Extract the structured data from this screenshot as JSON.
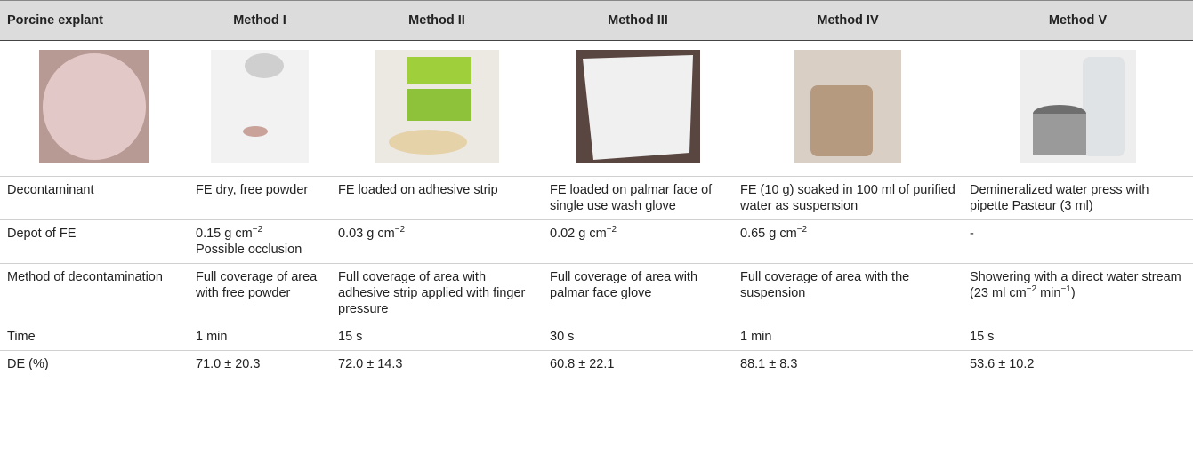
{
  "table": {
    "header": [
      "Porcine explant",
      "Method I",
      "Method II",
      "Method III",
      "Method IV",
      "Method V"
    ],
    "rows": [
      {
        "label": "Decontaminant",
        "cells": [
          [
            [
              "FE dry, free powder"
            ]
          ],
          [
            [
              "FE loaded on adhesive strip"
            ]
          ],
          [
            [
              "FE loaded on palmar face of single use wash glove"
            ]
          ],
          [
            [
              "FE (10 g) soaked in 100 ml of purified water as suspension"
            ]
          ],
          [
            [
              "Demineralized water press with pipette Pasteur (3 ml)"
            ]
          ]
        ]
      },
      {
        "label": "Depot of FE",
        "cells": [
          [
            [
              "0.15 g cm",
              {
                "sup": "−2"
              }
            ],
            [
              "Possible occlusion"
            ]
          ],
          [
            [
              "0.03 g cm",
              {
                "sup": "−2"
              }
            ]
          ],
          [
            [
              "0.02 g cm",
              {
                "sup": "−2"
              }
            ]
          ],
          [
            [
              "0.65 g cm",
              {
                "sup": "−2"
              }
            ]
          ],
          [
            [
              "-"
            ]
          ]
        ]
      },
      {
        "label": "Method of decontamination",
        "cells": [
          [
            [
              "Full coverage of area with free powder"
            ]
          ],
          [
            [
              "Full coverage of area with adhesive strip applied with finger pressure"
            ]
          ],
          [
            [
              "Full coverage of area with palmar face glove"
            ]
          ],
          [
            [
              "Full coverage of area with the suspension"
            ]
          ],
          [
            [
              "Showering with a direct water stream (23 ml cm",
              {
                "sup": "−2"
              },
              " min",
              {
                "sup": "−1"
              },
              ")"
            ]
          ]
        ]
      },
      {
        "label": "Time",
        "cells": [
          [
            [
              "1 min"
            ]
          ],
          [
            [
              "15 s"
            ]
          ],
          [
            [
              "30 s"
            ]
          ],
          [
            [
              "1 min"
            ]
          ],
          [
            [
              "15 s"
            ]
          ]
        ]
      },
      {
        "label": "DE (%)",
        "cells": [
          [
            [
              "71.0 ± 20.3"
            ]
          ],
          [
            [
              "72.0 ± 14.3"
            ]
          ],
          [
            [
              "60.8 ± 22.1"
            ]
          ],
          [
            [
              "88.1 ± 8.3"
            ]
          ],
          [
            [
              "53.6 ± 10.2"
            ]
          ]
        ]
      }
    ]
  }
}
